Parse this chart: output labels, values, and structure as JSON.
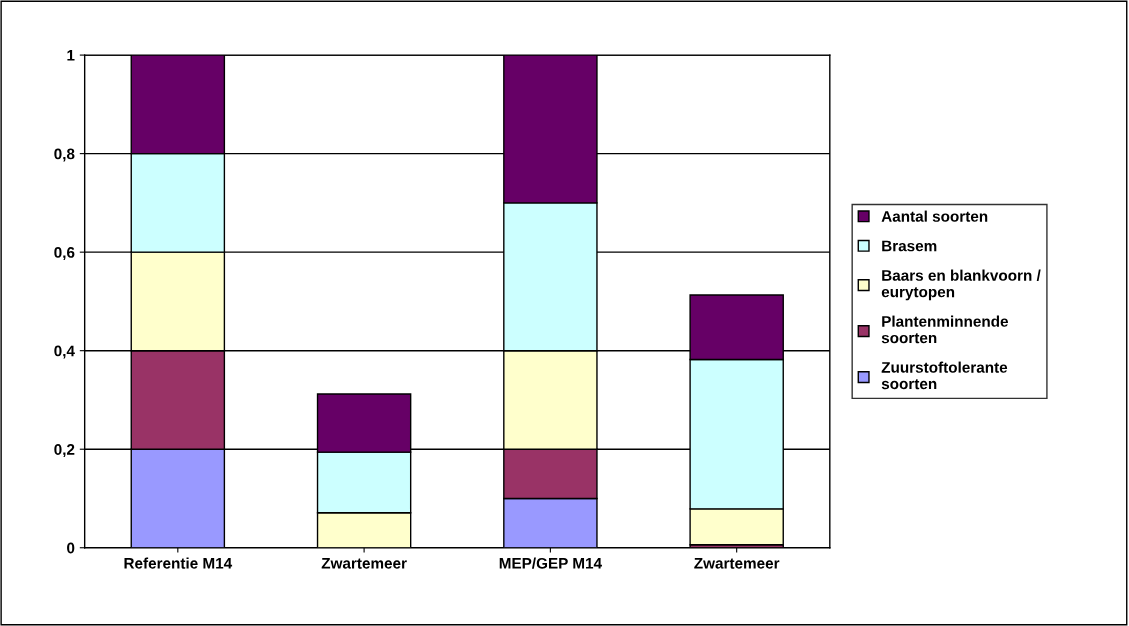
{
  "chart_data": {
    "type": "bar",
    "stacked": true,
    "categories": [
      "Referentie M14",
      "Zwartemeer",
      "MEP/GEP M14",
      "Zwartemeer"
    ],
    "series": [
      {
        "name": "Zuurstoftolerante\nsoorten",
        "color": "#9999ff",
        "values": [
          0.2,
          0,
          0.1,
          0
        ]
      },
      {
        "name": "Plantenminnende\nsoorten",
        "color": "#993366",
        "values": [
          0.2,
          null,
          0.1,
          0.006
        ]
      },
      {
        "name": "Baars en blankvoorn /\neurytopen",
        "color": "#ffffcc",
        "values": [
          0.2,
          0.071,
          0.2,
          0.073
        ]
      },
      {
        "name": "Brasem",
        "color": "#ccffff",
        "values": [
          0.2,
          0.123,
          0.3,
          0.303
        ]
      },
      {
        "name": "Aantal soorten",
        "color": "#660066",
        "values": [
          0.2,
          0.118,
          0.3,
          0.131
        ]
      }
    ],
    "ylim": [
      0,
      1
    ],
    "yticks": [
      {
        "value": 0,
        "label": "0"
      },
      {
        "value": 0.2,
        "label": "0,2"
      },
      {
        "value": 0.4,
        "label": "0,4"
      },
      {
        "value": 0.6,
        "label": "0,6"
      },
      {
        "value": 0.8,
        "label": "0,8"
      },
      {
        "value": 1,
        "label": "1"
      }
    ],
    "grid": "y",
    "legend": "right"
  }
}
